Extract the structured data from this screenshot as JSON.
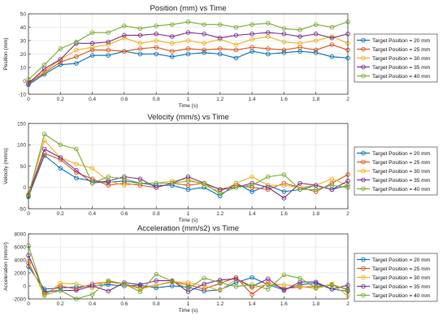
{
  "chart_data": [
    {
      "type": "line",
      "title": "Position (mm) vs Time",
      "xlabel": "Time (s)",
      "ylabel": "Position (mm)",
      "xlim": [
        0,
        2
      ],
      "ylim": [
        -10,
        50
      ],
      "xticks": [
        0,
        0.2,
        0.4,
        0.6,
        0.8,
        1,
        1.2,
        1.4,
        1.6,
        1.8,
        2
      ],
      "yticks": [
        -10,
        0,
        10,
        20,
        30,
        40,
        50
      ],
      "grid": true,
      "legend_position": "right",
      "x": [
        0,
        0.1,
        0.2,
        0.3,
        0.4,
        0.5,
        0.6,
        0.7,
        0.8,
        0.9,
        1.0,
        1.1,
        1.2,
        1.3,
        1.4,
        1.5,
        1.6,
        1.7,
        1.8,
        1.9,
        2.0
      ],
      "series": [
        {
          "name": "Target Position = 20 mm",
          "color": "#0072BD",
          "values": [
            -3,
            5,
            12,
            13,
            19,
            19,
            22,
            20,
            20,
            18,
            20,
            21,
            20,
            17,
            22,
            20,
            21,
            22,
            21,
            18,
            17
          ]
        },
        {
          "name": "Target Position = 25 mm",
          "color": "#D95319",
          "values": [
            -2,
            6,
            14,
            18,
            23,
            23,
            22,
            24,
            25,
            22,
            24,
            23,
            24,
            23,
            25,
            24,
            23,
            25,
            23,
            27,
            23
          ]
        },
        {
          "name": "Target Position = 30 mm",
          "color": "#EDB120",
          "values": [
            -1,
            7,
            16,
            23,
            25,
            27,
            32,
            28,
            30,
            28,
            30,
            28,
            31,
            27,
            31,
            33,
            29,
            28,
            30,
            33,
            28
          ]
        },
        {
          "name": "Target Position = 35 mm",
          "color": "#7E2F8E",
          "values": [
            -2,
            9,
            16,
            28,
            28,
            29,
            34,
            34,
            35,
            33,
            36,
            35,
            32,
            34,
            35,
            36,
            35,
            33,
            35,
            32,
            35
          ]
        },
        {
          "name": "Target Position = 40 mm",
          "color": "#77AC30",
          "values": [
            1,
            12,
            24,
            29,
            36,
            36,
            41,
            39,
            41,
            42,
            44,
            42,
            42,
            40,
            42,
            43,
            39,
            38,
            42,
            40,
            44
          ]
        }
      ]
    },
    {
      "type": "line",
      "title": "Velocity (mm/s) vs Time",
      "xlabel": "Time (s)",
      "ylabel": "Velocity (mm/s)",
      "xlim": [
        0,
        2
      ],
      "ylim": [
        -50,
        150
      ],
      "xticks": [
        0,
        0.2,
        0.4,
        0.6,
        0.8,
        1,
        1.2,
        1.4,
        1.6,
        1.8,
        2
      ],
      "yticks": [
        -50,
        0,
        50,
        100,
        150
      ],
      "grid": true,
      "legend_position": "right",
      "x": [
        0,
        0.1,
        0.2,
        0.3,
        0.4,
        0.5,
        0.6,
        0.7,
        0.8,
        0.9,
        1.0,
        1.1,
        1.2,
        1.3,
        1.4,
        1.5,
        1.6,
        1.7,
        1.8,
        1.9,
        2.0
      ],
      "series": [
        {
          "name": "Target Position = 20 mm",
          "color": "#0072BD",
          "values": [
            -22,
            75,
            45,
            22,
            15,
            12,
            15,
            10,
            5,
            5,
            -5,
            0,
            -20,
            10,
            -10,
            5,
            -10,
            -5,
            5,
            -5,
            5
          ]
        },
        {
          "name": "Target Position = 25 mm",
          "color": "#D95319",
          "values": [
            -20,
            80,
            65,
            35,
            20,
            5,
            10,
            5,
            0,
            10,
            5,
            10,
            -5,
            5,
            0,
            -5,
            10,
            0,
            -10,
            10,
            30
          ]
        },
        {
          "name": "Target Position = 30 mm",
          "color": "#EDB120",
          "values": [
            -15,
            110,
            70,
            55,
            45,
            15,
            5,
            10,
            10,
            15,
            20,
            5,
            -10,
            10,
            25,
            5,
            5,
            0,
            5,
            20,
            5
          ]
        },
        {
          "name": "Target Position = 35 mm",
          "color": "#7E2F8E",
          "values": [
            -18,
            90,
            70,
            40,
            10,
            15,
            25,
            20,
            0,
            10,
            25,
            10,
            -5,
            0,
            10,
            0,
            -25,
            10,
            5,
            -5,
            15
          ]
        },
        {
          "name": "Target Position = 40 mm",
          "color": "#77AC30",
          "values": [
            -20,
            125,
            100,
            90,
            10,
            25,
            20,
            10,
            10,
            10,
            15,
            10,
            -15,
            0,
            5,
            25,
            30,
            -5,
            -5,
            5,
            0
          ]
        }
      ]
    },
    {
      "type": "line",
      "title": "Acceleration (mm/s2) vs Time",
      "xlabel": "Time (s)",
      "ylabel": "Acceleration (mm/s²)",
      "xlim": [
        0,
        2
      ],
      "ylim": [
        -2000,
        8000
      ],
      "xticks": [
        0,
        0.2,
        0.4,
        0.6,
        0.8,
        1,
        1.2,
        1.4,
        1.6,
        1.8,
        2
      ],
      "yticks": [
        -2000,
        0,
        2000,
        4000,
        6000,
        8000
      ],
      "grid": true,
      "legend_position": "right",
      "x": [
        0,
        0.1,
        0.2,
        0.3,
        0.4,
        0.5,
        0.6,
        0.7,
        0.8,
        0.9,
        1.0,
        1.1,
        1.2,
        1.3,
        1.4,
        1.5,
        1.6,
        1.7,
        1.8,
        1.9,
        2.0
      ],
      "series": [
        {
          "name": "Target Position = 20 mm",
          "color": "#0072BD",
          "values": [
            3000,
            -500,
            -300,
            -200,
            0,
            200,
            0,
            100,
            -300,
            0,
            -200,
            -800,
            -600,
            500,
            1300,
            200,
            -600,
            200,
            400,
            -500,
            -800
          ]
        },
        {
          "name": "Target Position = 25 mm",
          "color": "#D95319",
          "values": [
            3500,
            -1200,
            0,
            -500,
            300,
            600,
            300,
            -300,
            100,
            600,
            200,
            -500,
            400,
            1300,
            -1300,
            500,
            -400,
            -200,
            -100,
            200,
            -600
          ]
        },
        {
          "name": "Target Position = 30 mm",
          "color": "#EDB120",
          "values": [
            3800,
            -1500,
            400,
            300,
            -300,
            800,
            200,
            -500,
            100,
            700,
            500,
            0,
            -700,
            1000,
            -300,
            300,
            200,
            -100,
            -400,
            300,
            -1500
          ]
        },
        {
          "name": "Target Position = 35 mm",
          "color": "#7E2F8E",
          "values": [
            4700,
            -900,
            -700,
            -700,
            0,
            -800,
            500,
            200,
            800,
            800,
            -900,
            300,
            900,
            1100,
            -100,
            1100,
            -700,
            600,
            600,
            -500,
            100
          ]
        },
        {
          "name": "Target Position = 40 mm",
          "color": "#77AC30",
          "values": [
            6200,
            -1400,
            -700,
            -2000,
            -1300,
            800,
            300,
            -900,
            1800,
            700,
            -400,
            1200,
            500,
            -100,
            200,
            -500,
            1700,
            1200,
            -300,
            100,
            -500
          ]
        }
      ]
    }
  ]
}
